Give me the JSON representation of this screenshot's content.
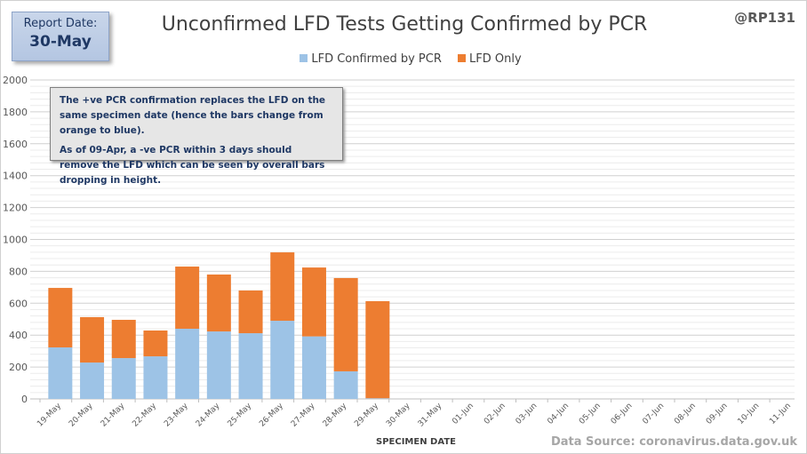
{
  "report": {
    "label": "Report Date:",
    "date": "30-May"
  },
  "handle": "@RP131",
  "source": "Data Source: coronavirus.data.gov.uk",
  "note": [
    "The +ve PCR confirmation replaces the LFD on the same specimen date (hence the bars change from orange to blue).",
    "As of 09-Apr, a -ve PCR within 3 days should remove the LFD which can be seen by overall bars dropping  in height."
  ],
  "colors": {
    "confirmed": "#9dc3e6",
    "lfd_only": "#ed7d31"
  },
  "chart_data": {
    "type": "bar",
    "stacked": true,
    "title": "Unconfirmed LFD Tests Getting Confirmed by PCR",
    "xlabel": "SPECIMEN DATE",
    "ylabel": "",
    "ylim": [
      0,
      2000
    ],
    "yticks": [
      0,
      200,
      400,
      600,
      800,
      1000,
      1200,
      1400,
      1600,
      1800,
      2000
    ],
    "grid": true,
    "legend_position": "top",
    "categories": [
      "19-May",
      "20-May",
      "21-May",
      "22-May",
      "23-May",
      "24-May",
      "25-May",
      "26-May",
      "27-May",
      "28-May",
      "29-May",
      "30-May",
      "31-May",
      "01-Jun",
      "02-Jun",
      "03-Jun",
      "04-Jun",
      "05-Jun",
      "06-Jun",
      "07-Jun",
      "08-Jun",
      "09-Jun",
      "10-Jun",
      "11-Jun"
    ],
    "series": [
      {
        "name": "LFD Confirmed by PCR",
        "values": [
          323,
          228,
          256,
          267,
          440,
          423,
          412,
          490,
          392,
          173,
          4,
          0,
          0,
          0,
          0,
          0,
          0,
          0,
          0,
          0,
          0,
          0,
          0,
          0
        ]
      },
      {
        "name": "LFD Only",
        "values": [
          373,
          285,
          240,
          162,
          390,
          357,
          268,
          429,
          432,
          585,
          609,
          0,
          0,
          0,
          0,
          0,
          0,
          0,
          0,
          0,
          0,
          0,
          0,
          0
        ]
      }
    ]
  }
}
